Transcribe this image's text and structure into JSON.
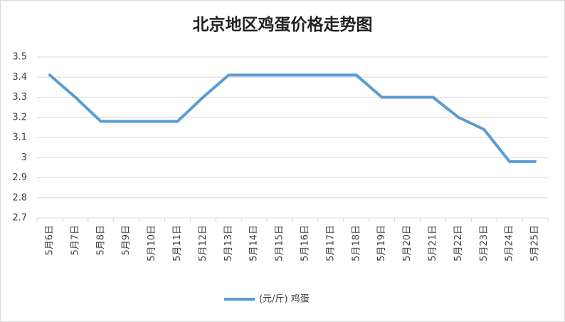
{
  "chart_data": {
    "type": "line",
    "title": "北京地区鸡蛋价格走势图",
    "categories": [
      "5月6日",
      "5月7日",
      "5月8日",
      "5月9日",
      "5月10日",
      "5月11日",
      "5月12日",
      "5月13日",
      "5月14日",
      "5月15日",
      "5月16日",
      "5月17日",
      "5月18日",
      "5月19日",
      "5月20日",
      "5月21日",
      "5月22日",
      "5月23日",
      "5月24日",
      "5月25日"
    ],
    "series": [
      {
        "name": "(元/斤) 鸡蛋",
        "color": "#5b9bd5",
        "values": [
          3.41,
          3.3,
          3.18,
          3.18,
          3.18,
          3.18,
          3.3,
          3.41,
          3.41,
          3.41,
          3.41,
          3.41,
          3.41,
          3.3,
          3.3,
          3.3,
          3.2,
          3.14,
          2.98,
          2.98
        ]
      }
    ],
    "ylim": [
      2.7,
      3.5
    ],
    "yticks": [
      2.7,
      2.8,
      2.9,
      3,
      3.1,
      3.2,
      3.3,
      3.4,
      3.5
    ],
    "grid": true,
    "legend": "bottom"
  }
}
